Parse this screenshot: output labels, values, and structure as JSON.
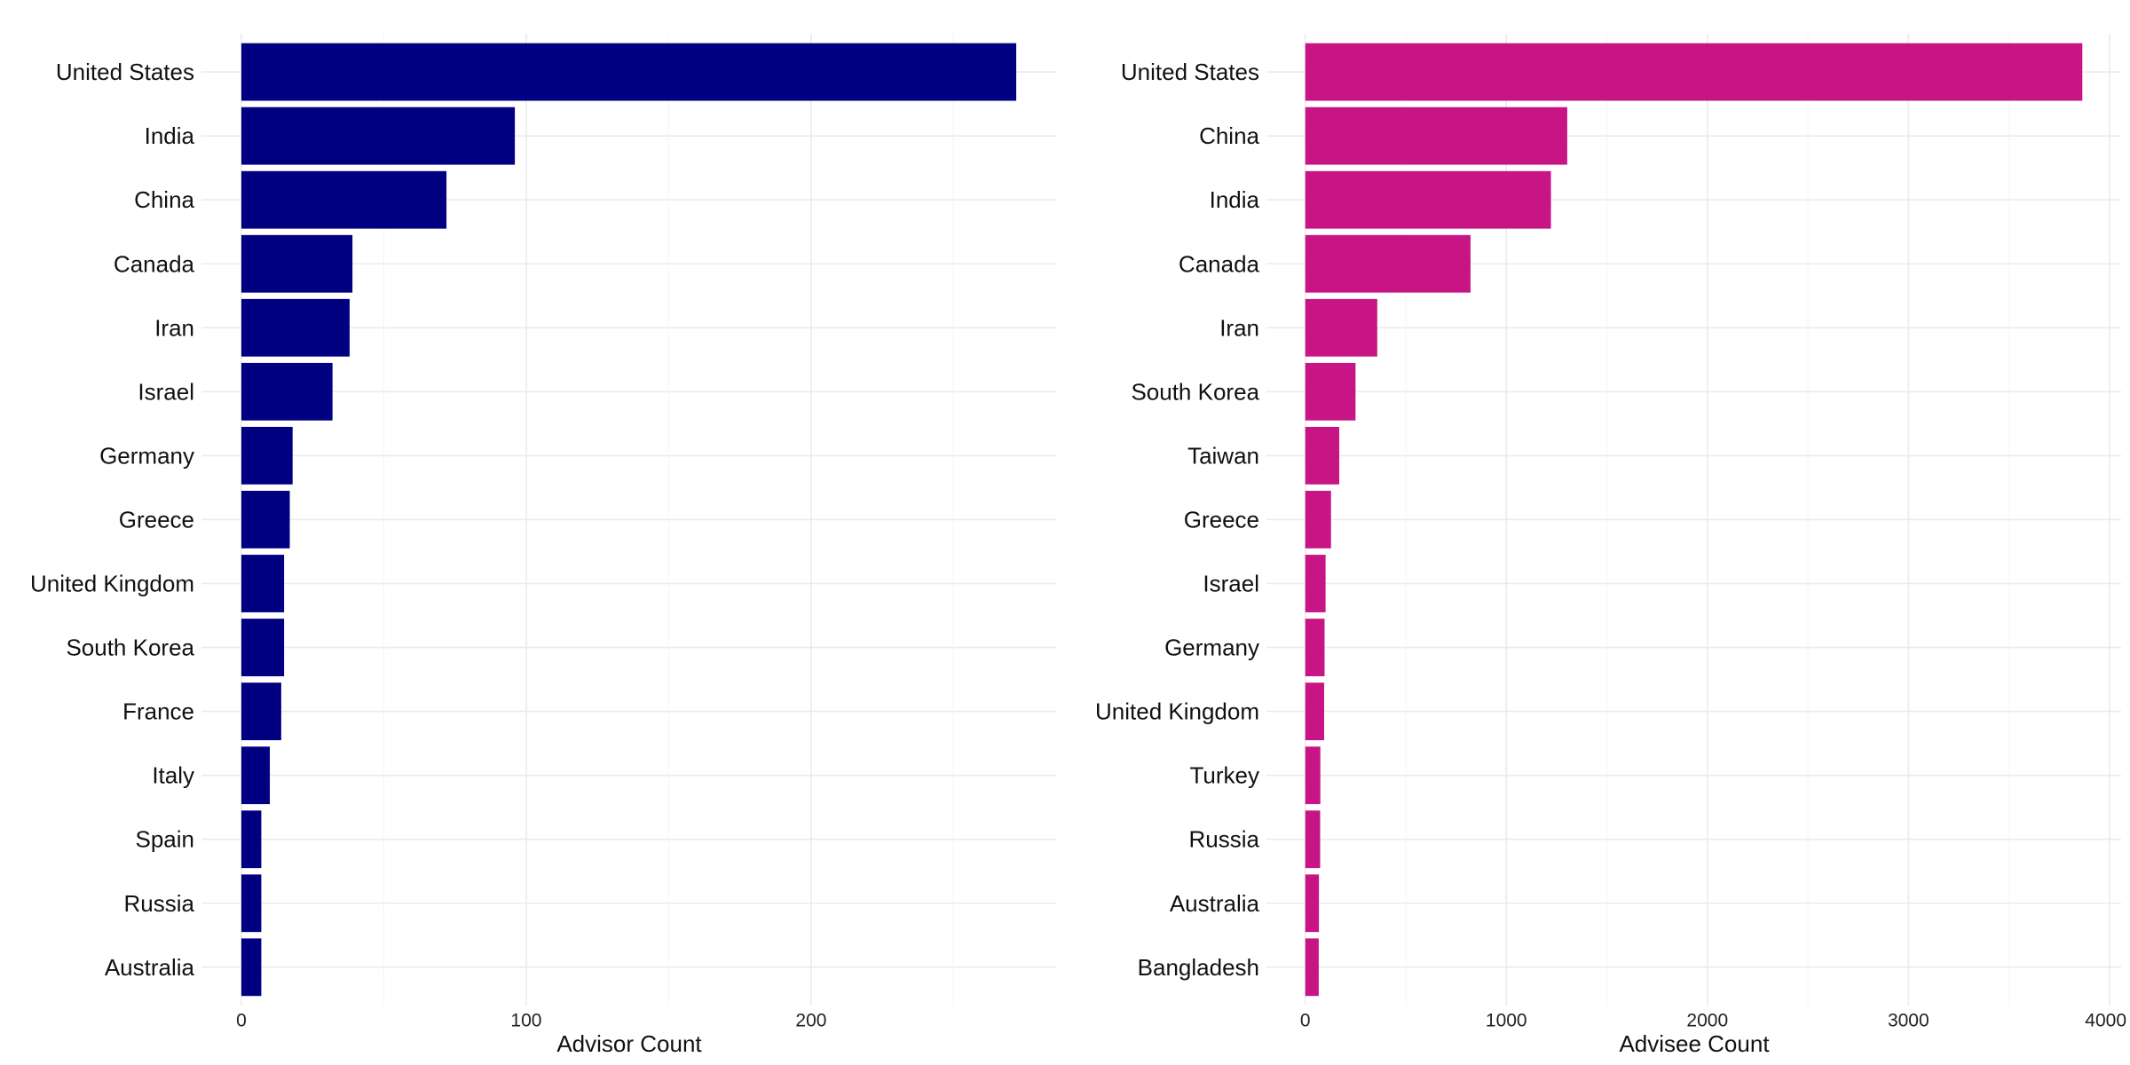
{
  "chart_data": [
    {
      "type": "bar",
      "orientation": "horizontal",
      "categories": [
        "United States",
        "India",
        "China",
        "Canada",
        "Iran",
        "Israel",
        "Germany",
        "Greece",
        "United Kingdom",
        "South Korea",
        "France",
        "Italy",
        "Spain",
        "Russia",
        "Australia"
      ],
      "values": [
        272,
        96,
        72,
        39,
        38,
        32,
        18,
        17,
        15,
        15,
        14,
        10,
        7,
        7,
        7
      ],
      "xlabel": "Advisor Count",
      "xlim": [
        -14,
        286
      ],
      "xticks": [
        0,
        100,
        200
      ],
      "grid": true,
      "bar_color": "#000080"
    },
    {
      "type": "bar",
      "orientation": "horizontal",
      "categories": [
        "United States",
        "China",
        "India",
        "Canada",
        "Iran",
        "South Korea",
        "Taiwan",
        "Greece",
        "Israel",
        "Germany",
        "United Kingdom",
        "Turkey",
        "Russia",
        "Australia",
        "Bangladesh"
      ],
      "values": [
        3865,
        1303,
        1222,
        822,
        358,
        250,
        169,
        128,
        101,
        96,
        94,
        75,
        74,
        68,
        67
      ],
      "xlabel": "Advisee Count",
      "xlim": [
        -193,
        4058
      ],
      "xticks": [
        0,
        1000,
        2000,
        3000,
        4000
      ],
      "grid": true,
      "bar_color": "#C71585"
    }
  ],
  "colors": {
    "background": "#FFFFFF",
    "grid": "#EBEBEB",
    "text": "#111111"
  }
}
